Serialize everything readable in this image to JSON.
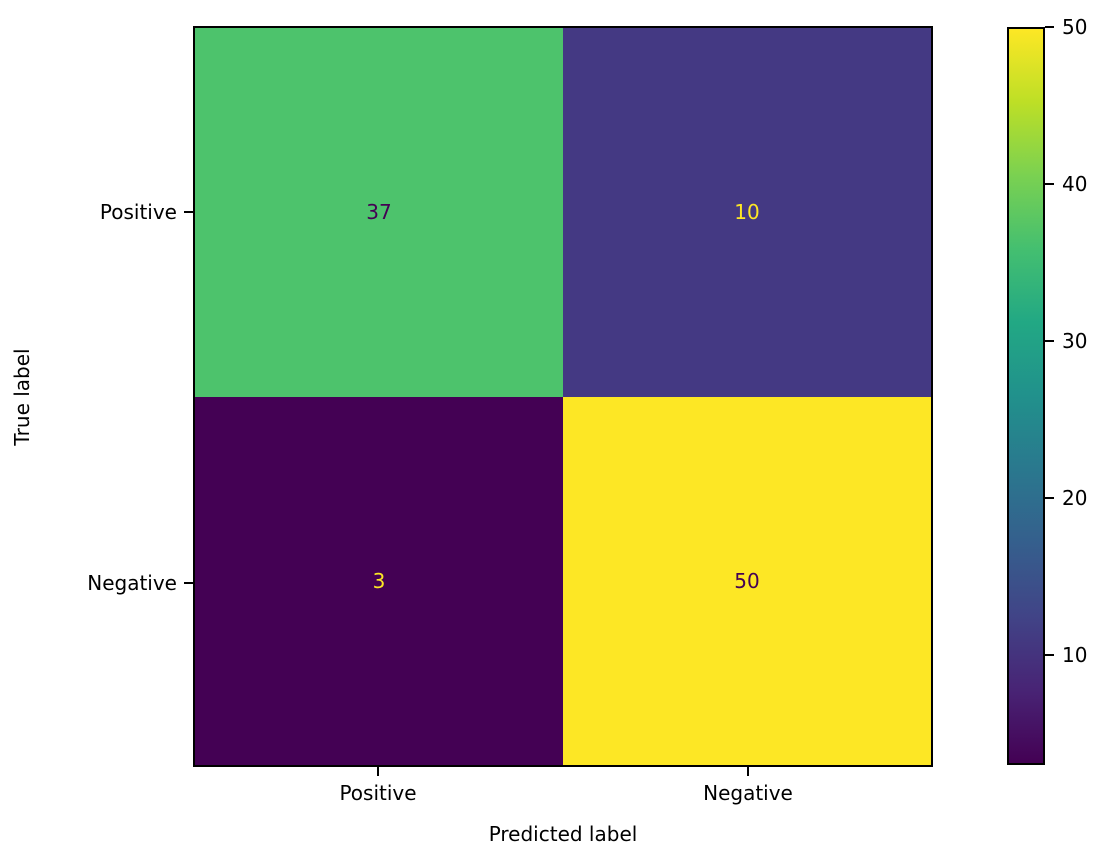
{
  "chart_data": {
    "type": "heatmap",
    "title": "",
    "xlabel": "Predicted label",
    "ylabel": "True label",
    "x_categories": [
      "Positive",
      "Negative"
    ],
    "y_categories": [
      "Positive",
      "Negative"
    ],
    "matrix": [
      [
        37,
        10
      ],
      [
        3,
        50
      ]
    ],
    "colormap": "viridis",
    "vmin": 3,
    "vmax": 50,
    "grid": false,
    "legend_position": "right-colorbar",
    "colorbar_ticks": [
      10,
      20,
      30,
      40,
      50
    ],
    "cells": [
      {
        "row": "Positive",
        "col": "Positive",
        "value": "37",
        "bg": "#4dc36c",
        "fg": "#440154"
      },
      {
        "row": "Positive",
        "col": "Negative",
        "value": "10",
        "bg": "#443983",
        "fg": "#fde725"
      },
      {
        "row": "Negative",
        "col": "Positive",
        "value": "3",
        "bg": "#440154",
        "fg": "#fde725"
      },
      {
        "row": "Negative",
        "col": "Negative",
        "value": "50",
        "bg": "#fde725",
        "fg": "#440154"
      }
    ],
    "viridis_stops": [
      "#440154",
      "#482475",
      "#414487",
      "#355f8d",
      "#2a788e",
      "#21918c",
      "#22a884",
      "#44bf70",
      "#7ad151",
      "#bddf26",
      "#fde725"
    ],
    "axis_color": "#000000",
    "background_color": "#ffffff"
  }
}
